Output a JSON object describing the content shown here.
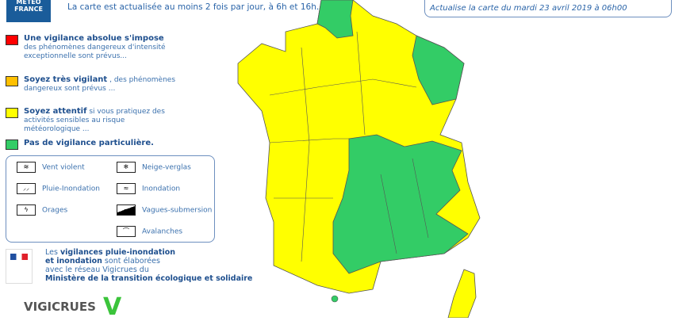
{
  "header": {
    "logo_text": "MÉTÉO FRANCE",
    "intro": "La carte est actualisée au moins 2 fois par jour, à 6h et 16h.",
    "update": "Actualise la carte du mardi 23 avril 2019 à 06h00"
  },
  "legend": [
    {
      "color": "#ff0000",
      "title": "Une vigilance absolue s'impose",
      "text": "des phénomènes dangereux d'intensité exceptionnelle sont prévus..."
    },
    {
      "color": "#ffc000",
      "title": "Soyez très vigilant",
      "text": ", des phénomènes dangereux sont prévus ..."
    },
    {
      "color": "#ffff00",
      "title": "Soyez attentif",
      "text": "si vous pratiquez des activités sensibles au risque météorologique ..."
    },
    {
      "color": "#33cc66",
      "title": "Pas de vigilance particulière.",
      "text": ""
    }
  ],
  "phenomena": [
    {
      "icon": "wind-icon",
      "label": "Vent violent"
    },
    {
      "icon": "snow-ice-icon",
      "label": "Neige-verglas"
    },
    {
      "icon": "rain-flood-icon",
      "label": "Pluie-Inondation"
    },
    {
      "icon": "flood-icon",
      "label": "Inondation"
    },
    {
      "icon": "storm-icon",
      "label": "Orages"
    },
    {
      "icon": "waves-icon",
      "label": "Vagues-submersion"
    },
    {
      "icon": "avalanche-icon",
      "label": "Avalanches"
    }
  ],
  "ministry": {
    "l1a": "Les ",
    "l1b": "vigilances pluie-inondation",
    "l2a": "et inondation",
    "l2b": " sont élaborées",
    "l3": "avec le réseau Vigicrues du",
    "l4": "Ministère de la transition écologique et solidaire"
  },
  "logos": {
    "vigicrues": "VIGICRUES",
    "v": "V"
  },
  "map": {
    "yellow": "#ffff00",
    "green": "#33cc66"
  }
}
